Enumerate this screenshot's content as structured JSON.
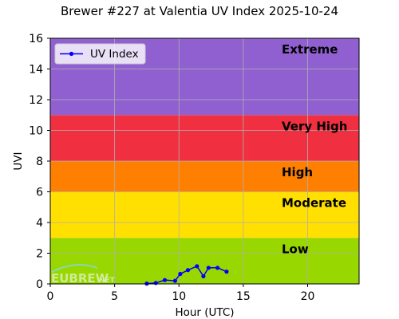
{
  "chart_data": {
    "type": "line",
    "title": "Brewer #227 at Valentia UV Index 2025-10-24",
    "xlabel": "Hour (UTC)",
    "ylabel": "UVI",
    "xlim": [
      0,
      24
    ],
    "ylim": [
      0,
      16
    ],
    "x_ticks": [
      "0",
      "5",
      "10",
      "15",
      "20"
    ],
    "y_ticks": [
      "0",
      "2",
      "4",
      "6",
      "8",
      "10",
      "12",
      "14",
      "16"
    ],
    "grid": true,
    "legend_position": "top-left",
    "bands": [
      {
        "label": "Low",
        "from": 0,
        "to": 3,
        "color": "#99d700"
      },
      {
        "label": "Moderate",
        "from": 3,
        "to": 6,
        "color": "#ffe000"
      },
      {
        "label": "High",
        "from": 6,
        "to": 8,
        "color": "#ff8000"
      },
      {
        "label": "Very High",
        "from": 8,
        "to": 11,
        "color": "#f03040"
      },
      {
        "label": "Extreme",
        "from": 11,
        "to": 16,
        "color": "#9060d0"
      }
    ],
    "series": [
      {
        "name": "UV Index",
        "color": "#0000ff",
        "x": [
          7.5,
          8.2,
          8.9,
          9.7,
          10.1,
          10.7,
          11.4,
          11.9,
          12.3,
          13.0,
          13.7
        ],
        "y": [
          0.02,
          0.06,
          0.25,
          0.2,
          0.65,
          0.9,
          1.15,
          0.5,
          1.05,
          1.05,
          0.8
        ]
      }
    ]
  },
  "watermark": {
    "main": "EUBREW",
    "suffix": "NET"
  }
}
